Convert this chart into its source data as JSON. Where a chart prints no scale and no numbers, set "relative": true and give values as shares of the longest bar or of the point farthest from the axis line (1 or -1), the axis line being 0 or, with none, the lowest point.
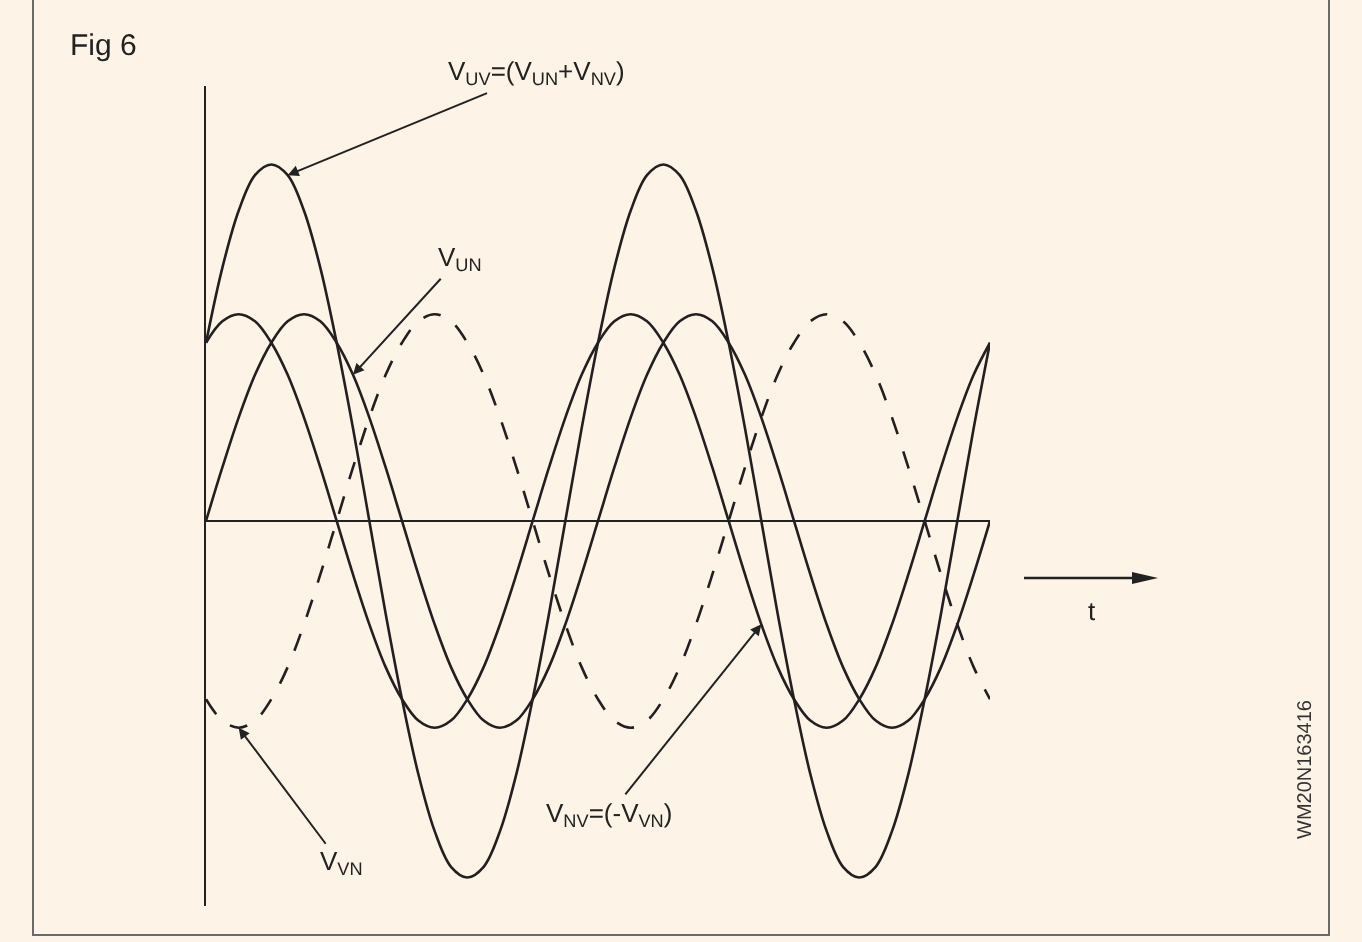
{
  "chart_data": {
    "type": "line",
    "title": "Fig 6",
    "xlabel": "t",
    "relative": true,
    "categories": [
      null,
      null,
      null,
      null,
      null,
      null,
      null,
      null,
      null,
      null,
      null,
      null,
      null,
      null,
      null,
      null,
      null,
      null,
      null,
      null,
      null,
      null,
      null,
      null,
      null,
      null,
      null,
      null,
      null,
      null,
      null,
      null,
      null,
      null,
      null,
      null,
      null,
      null,
      null,
      null,
      null,
      null,
      null,
      null,
      null,
      null,
      null,
      null,
      null
    ],
    "series": [
      {
        "name": "V$_{UV}$=(V$_{UN}$+V$_{NV}$)",
        "color": "#231f20",
        "line_style": "solid",
        "values": [
          0.5,
          0.71,
          0.87,
          0.97,
          1,
          0.97,
          0.87,
          0.71,
          0.5,
          0.26,
          0,
          -0.26,
          -0.5,
          -0.71,
          -0.87,
          -0.97,
          -1,
          -0.97,
          -0.87,
          -0.71,
          -0.5,
          -0.26,
          0,
          0.26,
          0.5,
          0.71,
          0.87,
          0.97,
          1,
          0.97,
          0.87,
          0.71,
          0.5,
          0.26,
          0,
          -0.26,
          -0.5,
          -0.71,
          -0.87,
          -0.97,
          -1,
          -0.97,
          -0.87,
          -0.71,
          -0.5,
          -0.26,
          0,
          0.26,
          0.5
        ]
      },
      {
        "name": "V$_{UN}$",
        "color": "#231f20",
        "line_style": "solid",
        "values": [
          0,
          0.15,
          0.29,
          0.41,
          0.5,
          0.56,
          0.58,
          0.56,
          0.5,
          0.41,
          0.29,
          0.15,
          0,
          -0.15,
          -0.29,
          -0.41,
          -0.5,
          -0.56,
          -0.58,
          -0.56,
          -0.5,
          -0.41,
          -0.29,
          -0.15,
          0,
          0.15,
          0.29,
          0.41,
          0.5,
          0.56,
          0.58,
          0.56,
          0.5,
          0.41,
          0.29,
          0.15,
          0,
          -0.15,
          -0.29,
          -0.41,
          -0.5,
          -0.56,
          -0.58,
          -0.56,
          -0.5,
          -0.41,
          -0.29,
          -0.15,
          0
        ]
      },
      {
        "name": "V$_{VN}$",
        "color": "#231f20",
        "line_style": "dashed",
        "values": [
          -0.5,
          -0.56,
          -0.58,
          -0.56,
          -0.5,
          -0.41,
          -0.29,
          -0.15,
          0,
          0.15,
          0.29,
          0.41,
          0.5,
          0.56,
          0.58,
          0.56,
          0.5,
          0.41,
          0.29,
          0.15,
          0,
          -0.15,
          -0.29,
          -0.41,
          -0.5,
          -0.56,
          -0.58,
          -0.56,
          -0.5,
          -0.41,
          -0.29,
          -0.15,
          0,
          0.15,
          0.29,
          0.41,
          0.5,
          0.56,
          0.58,
          0.56,
          0.5,
          0.41,
          0.29,
          0.15,
          0,
          -0.15,
          -0.29,
          -0.41,
          -0.5
        ]
      },
      {
        "name": "V$_{NV}$=(-V$_{VN}$)",
        "color": "#231f20",
        "line_style": "solid",
        "values": [
          0.5,
          0.56,
          0.58,
          0.56,
          0.5,
          0.41,
          0.29,
          0.15,
          0,
          -0.15,
          -0.29,
          -0.41,
          -0.5,
          -0.56,
          -0.58,
          -0.56,
          -0.5,
          -0.41,
          -0.29,
          -0.15,
          0,
          0.15,
          0.29,
          0.41,
          0.5,
          0.56,
          0.58,
          0.56,
          0.5,
          0.41,
          0.29,
          0.15,
          0,
          -0.15,
          -0.29,
          -0.41,
          -0.5,
          -0.56,
          -0.58,
          -0.56,
          -0.5,
          -0.41,
          -0.29,
          -0.15,
          0,
          0.15,
          0.29,
          0.41,
          0.5
        ]
      }
    ],
    "annotations": [
      "WM20N163416"
    ]
  }
}
